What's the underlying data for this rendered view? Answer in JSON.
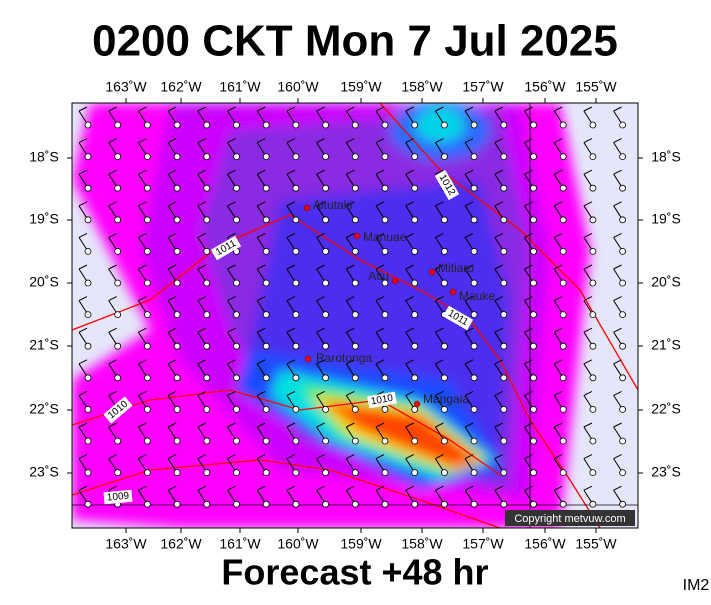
{
  "header": {
    "title": "0200 CKT Mon 7 Jul 2025"
  },
  "map": {
    "lon_labels": [
      "163˚W",
      "162˚W",
      "161˚W",
      "160˚W",
      "159˚W",
      "158˚W",
      "157˚W",
      "156˚W",
      "155˚W"
    ],
    "lat_labels": [
      "18˚S",
      "19˚S",
      "20˚S",
      "21˚S",
      "22˚S",
      "23˚S"
    ],
    "places": [
      "Aitutaki",
      "Manuae",
      "Mitiaro",
      "Atiu",
      "Mauke",
      "Rarotonga",
      "Mangaia"
    ],
    "isobars": [
      "1012",
      "1011",
      "1011",
      "1010",
      "1010",
      "1009"
    ],
    "copyright": "Copyright metvuw.com"
  },
  "footer": {
    "forecast": "Forecast +48 hr",
    "code": "IM2"
  }
}
